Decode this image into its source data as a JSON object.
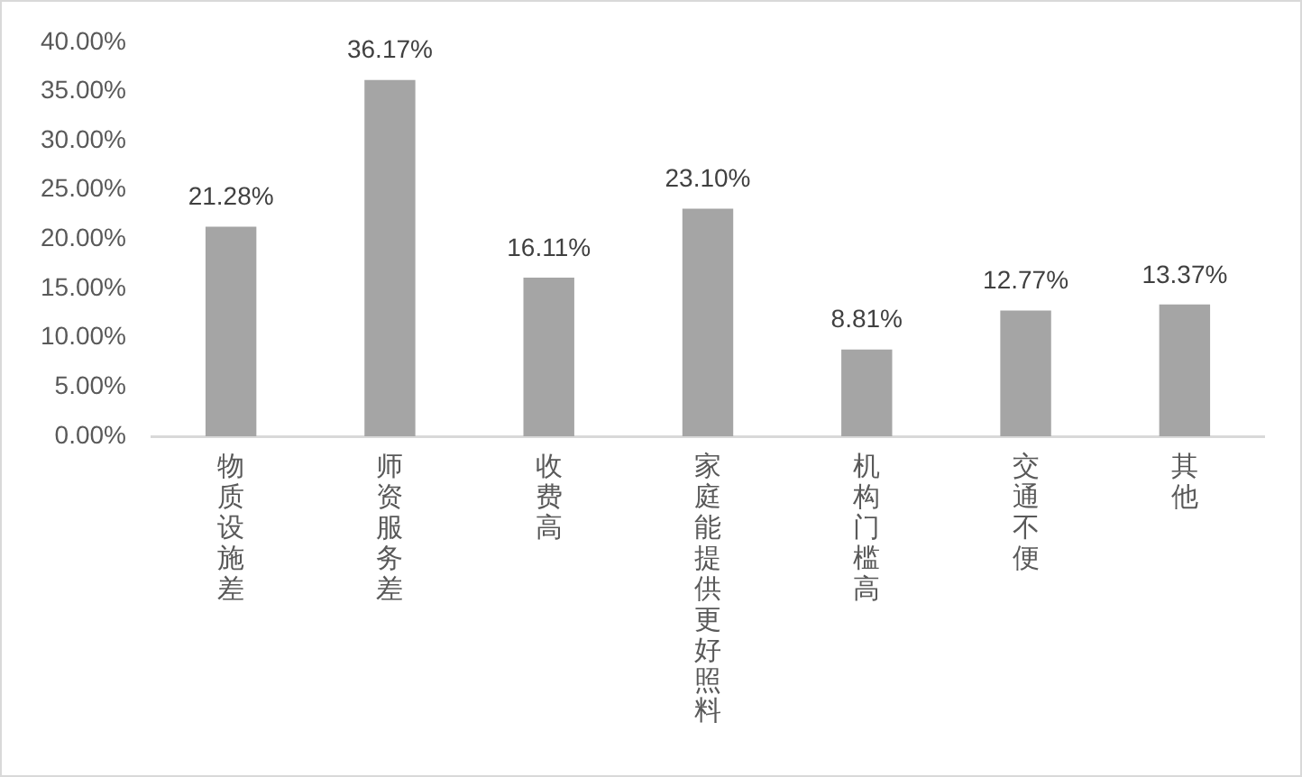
{
  "chart_data": {
    "type": "bar",
    "categories": [
      "物质设施差",
      "师资服务差",
      "收费高",
      "家庭能提供更好照料",
      "机构门槛高",
      "交通不便",
      "其他"
    ],
    "values": [
      21.28,
      36.17,
      16.11,
      23.1,
      8.81,
      12.77,
      13.37
    ],
    "value_labels": [
      "21.28%",
      "36.17%",
      "16.11%",
      "23.10%",
      "8.81%",
      "12.77%",
      "13.37%"
    ],
    "color": "#a5a5a5",
    "ylim": [
      0,
      40
    ],
    "yticks": [
      {
        "value": 0,
        "label": "0.00%"
      },
      {
        "value": 5,
        "label": "5.00%"
      },
      {
        "value": 10,
        "label": "10.00%"
      },
      {
        "value": 15,
        "label": "15.00%"
      },
      {
        "value": 20,
        "label": "20.00%"
      },
      {
        "value": 25,
        "label": "25.00%"
      },
      {
        "value": 30,
        "label": "30.00%"
      },
      {
        "value": 35,
        "label": "35.00%"
      },
      {
        "value": 40,
        "label": "40.00%"
      }
    ]
  }
}
